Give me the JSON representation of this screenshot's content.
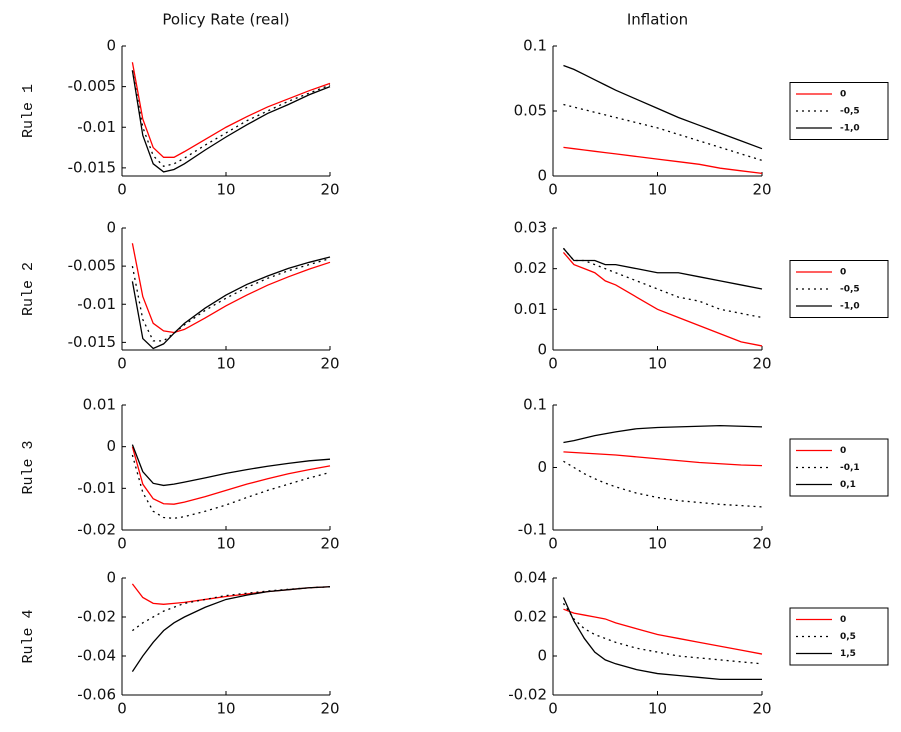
{
  "chart_data": [
    {
      "type": "line",
      "title": "Policy Rate (real)",
      "ylabel": "Rule 1",
      "x": [
        1,
        2,
        3,
        4,
        5,
        6,
        8,
        10,
        12,
        14,
        16,
        18,
        20
      ],
      "xlim": [
        0,
        20
      ],
      "xticks": [
        0,
        10,
        20
      ],
      "ylim": [
        -0.016,
        0
      ],
      "yticks": [
        0,
        -0.005,
        -0.01,
        -0.015
      ],
      "series": [
        {
          "color": "#ff0000",
          "style": "solid",
          "values": [
            -0.002,
            -0.009,
            -0.0125,
            -0.0137,
            -0.0137,
            -0.013,
            -0.0115,
            -0.01,
            -0.0087,
            -0.0075,
            -0.0065,
            -0.0055,
            -0.0046
          ]
        },
        {
          "color": "#000000",
          "style": "dotted",
          "values": [
            -0.003,
            -0.01,
            -0.0135,
            -0.0148,
            -0.0145,
            -0.0138,
            -0.0122,
            -0.0107,
            -0.0092,
            -0.008,
            -0.0068,
            -0.0058,
            -0.0048
          ]
        },
        {
          "color": "#000000",
          "style": "solid",
          "values": [
            -0.003,
            -0.011,
            -0.0145,
            -0.0155,
            -0.0152,
            -0.0145,
            -0.0128,
            -0.0112,
            -0.0097,
            -0.0083,
            -0.0072,
            -0.006,
            -0.005
          ]
        }
      ]
    },
    {
      "type": "line",
      "title": "Inflation",
      "x": [
        1,
        2,
        3,
        4,
        5,
        6,
        8,
        10,
        12,
        14,
        16,
        18,
        20
      ],
      "xlim": [
        0,
        20
      ],
      "xticks": [
        0,
        10,
        20
      ],
      "ylim": [
        0,
        0.1
      ],
      "yticks": [
        0,
        0.05,
        0.1
      ],
      "series": [
        {
          "name": "0",
          "color": "#ff0000",
          "style": "solid",
          "values": [
            0.022,
            0.021,
            0.02,
            0.019,
            0.018,
            0.017,
            0.015,
            0.013,
            0.011,
            0.009,
            0.006,
            0.004,
            0.002
          ]
        },
        {
          "name": "-0,5",
          "color": "#000000",
          "style": "dotted",
          "values": [
            0.055,
            0.053,
            0.051,
            0.049,
            0.047,
            0.045,
            0.041,
            0.037,
            0.032,
            0.027,
            0.022,
            0.017,
            0.012
          ]
        },
        {
          "name": "-1,0",
          "color": "#000000",
          "style": "solid",
          "values": [
            0.085,
            0.082,
            0.078,
            0.074,
            0.07,
            0.066,
            0.059,
            0.052,
            0.045,
            0.039,
            0.033,
            0.027,
            0.021
          ]
        }
      ]
    },
    {
      "type": "line",
      "ylabel": "Rule 2",
      "x": [
        1,
        2,
        3,
        4,
        5,
        6,
        8,
        10,
        12,
        14,
        16,
        18,
        20
      ],
      "xlim": [
        0,
        20
      ],
      "xticks": [
        0,
        10,
        20
      ],
      "ylim": [
        -0.016,
        0
      ],
      "yticks": [
        0,
        -0.005,
        -0.01,
        -0.015
      ],
      "series": [
        {
          "color": "#ff0000",
          "style": "solid",
          "values": [
            -0.002,
            -0.009,
            -0.0125,
            -0.0135,
            -0.0137,
            -0.0133,
            -0.0118,
            -0.0102,
            -0.0088,
            -0.0075,
            -0.0064,
            -0.0054,
            -0.0045
          ]
        },
        {
          "color": "#000000",
          "style": "dotted",
          "values": [
            -0.005,
            -0.012,
            -0.0148,
            -0.0148,
            -0.0138,
            -0.0127,
            -0.0108,
            -0.0092,
            -0.0078,
            -0.0066,
            -0.0056,
            -0.0048,
            -0.004
          ]
        },
        {
          "color": "#000000",
          "style": "solid",
          "values": [
            -0.007,
            -0.0145,
            -0.0158,
            -0.0152,
            -0.0138,
            -0.0125,
            -0.0105,
            -0.0088,
            -0.0074,
            -0.0063,
            -0.0053,
            -0.0045,
            -0.0038
          ]
        }
      ]
    },
    {
      "type": "line",
      "x": [
        1,
        2,
        3,
        4,
        5,
        6,
        8,
        10,
        12,
        14,
        16,
        18,
        20
      ],
      "xlim": [
        0,
        20
      ],
      "xticks": [
        0,
        10,
        20
      ],
      "ylim": [
        0,
        0.03
      ],
      "yticks": [
        0,
        0.01,
        0.02,
        0.03
      ],
      "series": [
        {
          "name": "0",
          "color": "#ff0000",
          "style": "solid",
          "values": [
            0.024,
            0.021,
            0.02,
            0.019,
            0.017,
            0.016,
            0.013,
            0.01,
            0.008,
            0.006,
            0.004,
            0.002,
            0.001
          ]
        },
        {
          "name": "-0,5",
          "color": "#000000",
          "style": "dotted",
          "values": [
            0.025,
            0.022,
            0.022,
            0.021,
            0.02,
            0.019,
            0.017,
            0.015,
            0.013,
            0.012,
            0.01,
            0.009,
            0.008
          ]
        },
        {
          "name": "-1,0",
          "color": "#000000",
          "style": "solid",
          "values": [
            0.025,
            0.022,
            0.022,
            0.022,
            0.021,
            0.021,
            0.02,
            0.019,
            0.019,
            0.018,
            0.017,
            0.016,
            0.015
          ]
        }
      ]
    },
    {
      "type": "line",
      "ylabel": "Rule 3",
      "x": [
        1,
        2,
        3,
        4,
        5,
        6,
        8,
        10,
        12,
        14,
        16,
        18,
        20
      ],
      "xlim": [
        0,
        20
      ],
      "xticks": [
        0,
        10,
        20
      ],
      "ylim": [
        -0.02,
        0.01
      ],
      "yticks": [
        0.01,
        0,
        -0.01,
        -0.02
      ],
      "series": [
        {
          "color": "#ff0000",
          "style": "solid",
          "values": [
            0,
            -0.009,
            -0.0125,
            -0.0137,
            -0.0138,
            -0.0133,
            -0.012,
            -0.0105,
            -0.009,
            -0.0077,
            -0.0065,
            -0.0055,
            -0.0046
          ]
        },
        {
          "color": "#000000",
          "style": "dotted",
          "values": [
            -0.002,
            -0.011,
            -0.0155,
            -0.017,
            -0.0172,
            -0.0168,
            -0.0155,
            -0.014,
            -0.0122,
            -0.0105,
            -0.009,
            -0.0075,
            -0.0062
          ]
        },
        {
          "color": "#000000",
          "style": "solid",
          "values": [
            0.0005,
            -0.006,
            -0.0088,
            -0.0093,
            -0.009,
            -0.0085,
            -0.0075,
            -0.0064,
            -0.0055,
            -0.0047,
            -0.004,
            -0.0034,
            -0.003
          ]
        }
      ]
    },
    {
      "type": "line",
      "x": [
        1,
        2,
        3,
        4,
        5,
        6,
        8,
        10,
        12,
        14,
        16,
        18,
        20
      ],
      "xlim": [
        0,
        20
      ],
      "xticks": [
        0,
        10,
        20
      ],
      "ylim": [
        -0.1,
        0.1
      ],
      "yticks": [
        0.1,
        0,
        -0.1
      ],
      "series": [
        {
          "name": "0",
          "color": "#ff0000",
          "style": "solid",
          "values": [
            0.025,
            0.024,
            0.023,
            0.022,
            0.021,
            0.02,
            0.017,
            0.014,
            0.011,
            0.008,
            0.006,
            0.004,
            0.003
          ]
        },
        {
          "name": "-0,1",
          "color": "#000000",
          "style": "dotted",
          "values": [
            0.01,
            0,
            -0.01,
            -0.018,
            -0.025,
            -0.031,
            -0.041,
            -0.048,
            -0.053,
            -0.056,
            -0.059,
            -0.061,
            -0.063
          ]
        },
        {
          "name": "0,1",
          "color": "#000000",
          "style": "solid",
          "values": [
            0.04,
            0.043,
            0.047,
            0.051,
            0.054,
            0.057,
            0.062,
            0.064,
            0.065,
            0.066,
            0.067,
            0.066,
            0.065
          ]
        }
      ]
    },
    {
      "type": "line",
      "ylabel": "Rule 4",
      "x": [
        1,
        2,
        3,
        4,
        5,
        6,
        8,
        10,
        12,
        14,
        16,
        18,
        20
      ],
      "xlim": [
        0,
        20
      ],
      "xticks": [
        0,
        10,
        20
      ],
      "ylim": [
        -0.06,
        0
      ],
      "yticks": [
        0,
        -0.02,
        -0.04,
        -0.06
      ],
      "series": [
        {
          "color": "#ff0000",
          "style": "solid",
          "values": [
            -0.003,
            -0.01,
            -0.013,
            -0.0135,
            -0.013,
            -0.0125,
            -0.011,
            -0.0095,
            -0.0082,
            -0.007,
            -0.006,
            -0.005,
            -0.0045
          ]
        },
        {
          "color": "#000000",
          "style": "dotted",
          "values": [
            -0.027,
            -0.023,
            -0.02,
            -0.017,
            -0.015,
            -0.013,
            -0.011,
            -0.009,
            -0.0078,
            -0.0067,
            -0.0058,
            -0.005,
            -0.0045
          ]
        },
        {
          "color": "#000000",
          "style": "solid",
          "values": [
            -0.048,
            -0.04,
            -0.033,
            -0.027,
            -0.023,
            -0.02,
            -0.015,
            -0.011,
            -0.0088,
            -0.007,
            -0.006,
            -0.005,
            -0.0045
          ]
        }
      ]
    },
    {
      "type": "line",
      "x": [
        1,
        2,
        3,
        4,
        5,
        6,
        8,
        10,
        12,
        14,
        16,
        18,
        20
      ],
      "xlim": [
        0,
        20
      ],
      "xticks": [
        0,
        10,
        20
      ],
      "ylim": [
        -0.02,
        0.04
      ],
      "yticks": [
        0.04,
        0.02,
        0,
        -0.02
      ],
      "series": [
        {
          "name": "0",
          "color": "#ff0000",
          "style": "solid",
          "values": [
            0.024,
            0.022,
            0.021,
            0.02,
            0.019,
            0.017,
            0.014,
            0.011,
            0.009,
            0.007,
            0.005,
            0.003,
            0.001
          ]
        },
        {
          "name": "0,5",
          "color": "#000000",
          "style": "dotted",
          "values": [
            0.027,
            0.019,
            0.014,
            0.011,
            0.009,
            0.007,
            0.004,
            0.002,
            0,
            -0.001,
            -0.002,
            -0.003,
            -0.004
          ]
        },
        {
          "name": "1,5",
          "color": "#000000",
          "style": "solid",
          "values": [
            0.03,
            0.018,
            0.009,
            0.002,
            -0.002,
            -0.004,
            -0.007,
            -0.009,
            -0.01,
            -0.011,
            -0.012,
            -0.012,
            -0.012
          ]
        }
      ]
    }
  ]
}
